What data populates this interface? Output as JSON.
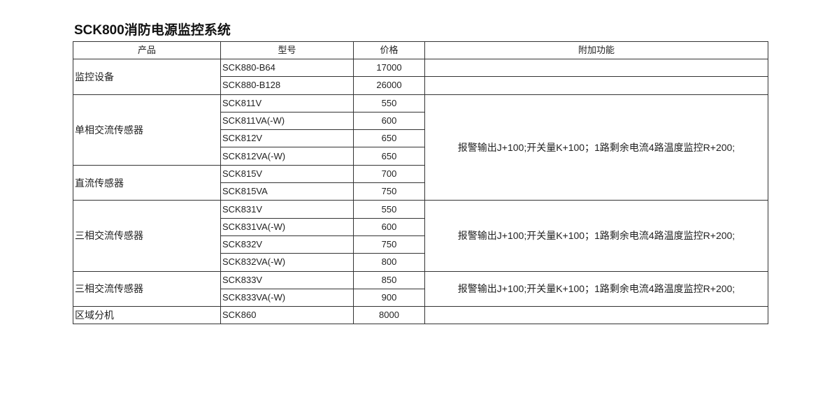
{
  "title": "SCK800消防电源监控系统",
  "headers": [
    "产品",
    "型号",
    "价格",
    "附加功能"
  ],
  "groups": [
    {
      "product": "监控设备",
      "rows": [
        {
          "model": "SCK880-B64",
          "price": "17000"
        },
        {
          "model": "SCK880-B128",
          "price": "26000"
        }
      ]
    },
    {
      "product": "单相交流传感器",
      "rows": [
        {
          "model": "SCK811V",
          "price": "550"
        },
        {
          "model": "SCK811VA(-W)",
          "price": "600"
        },
        {
          "model": "SCK812V",
          "price": "650"
        },
        {
          "model": "SCK812VA(-W)",
          "price": "650"
        }
      ]
    },
    {
      "product": "直流传感器",
      "rows": [
        {
          "model": "SCK815V",
          "price": "700"
        },
        {
          "model": "SCK815VA",
          "price": "750"
        }
      ]
    },
    {
      "product": "三相交流传感器",
      "rows": [
        {
          "model": "SCK831V",
          "price": "550"
        },
        {
          "model": "SCK831VA(-W)",
          "price": "600"
        },
        {
          "model": "SCK832V",
          "price": "750"
        },
        {
          "model": "SCK832VA(-W)",
          "price": "800"
        }
      ]
    },
    {
      "product": "三相交流传感器",
      "rows": [
        {
          "model": "SCK833V",
          "price": "850"
        },
        {
          "model": "SCK833VA(-W)",
          "price": "900"
        }
      ]
    },
    {
      "product": "区域分机",
      "rows": [
        {
          "model": "SCK860",
          "price": "8000"
        }
      ]
    }
  ],
  "addons": [
    "报警输出J+100;开关量K+100；1路剩余电流4路温度监控R+200;",
    "报警输出J+100;开关量K+100；1路剩余电流4路温度监控R+200;",
    "报警输出J+100;开关量K+100；1路剩余电流4路温度监控R+200;"
  ]
}
